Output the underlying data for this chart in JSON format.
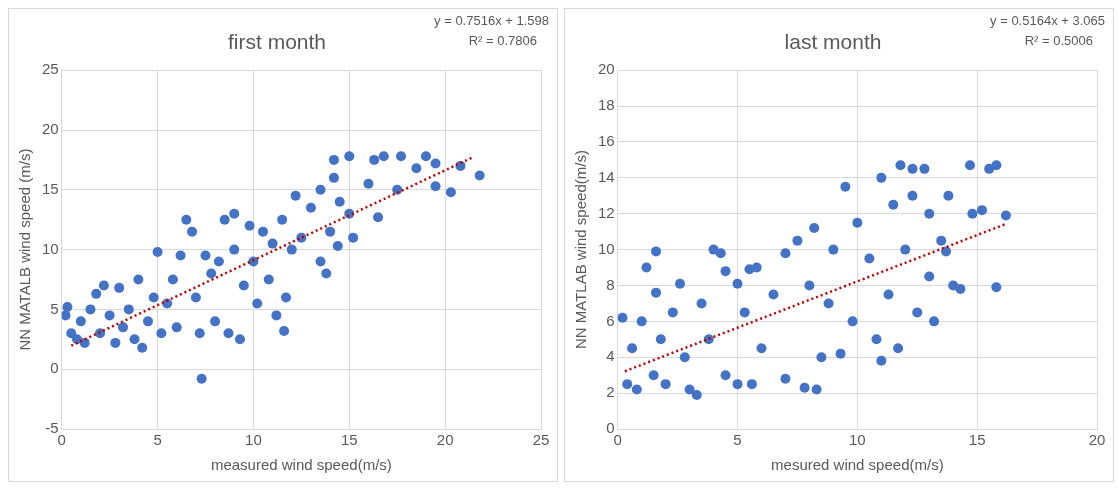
{
  "chart_data": [
    {
      "type": "scatter",
      "title": "first month",
      "xlabel": "measured wind speed(m/s)",
      "ylabel": "NN MATALB wind speed (m/s)",
      "xlim": [
        0,
        25
      ],
      "xticks": [
        0,
        5,
        10,
        15,
        20,
        25
      ],
      "ylim": [
        -5,
        25
      ],
      "yticks": [
        -5,
        0,
        5,
        10,
        15,
        20,
        25
      ],
      "grid": true,
      "marker": "circle",
      "annotations": [
        "y = 0.7516x + 1.598",
        "R² = 0.7806"
      ],
      "series": [
        {
          "color": "#4472c4",
          "x": [
            0.2,
            0.3,
            0.5,
            0.8,
            1,
            1.2,
            1.5,
            1.8,
            2,
            2.2,
            2.5,
            2.8,
            3,
            3.2,
            3.5,
            3.8,
            4,
            4.2,
            4.5,
            4.8,
            5,
            5.2,
            5.5,
            5.8,
            6,
            6.2,
            6.5,
            6.8,
            7,
            7.2,
            7.3,
            7.5,
            7.8,
            8,
            8.2,
            8.5,
            8.7,
            9,
            9,
            9.3,
            9.5,
            9.8,
            10,
            10.2,
            10.5,
            10.8,
            11,
            11.2,
            11.5,
            11.6,
            11.7,
            12,
            12.2,
            12.5,
            13,
            13.5,
            13.5,
            13.8,
            14,
            14.2,
            14.5,
            14.4,
            14.2,
            15,
            15,
            15.2,
            16,
            16.3,
            16.5,
            16.8,
            17.5,
            17.7,
            18.5,
            19,
            19.5,
            19.5,
            20.3,
            20.8,
            21.8
          ],
          "values": [
            4.5,
            5.2,
            3,
            2.5,
            4,
            2.2,
            5,
            6.3,
            3,
            7,
            4.5,
            2.2,
            6.8,
            3.5,
            5,
            2.5,
            7.5,
            1.8,
            4,
            6,
            9.8,
            3,
            5.5,
            7.5,
            3.5,
            9.5,
            12.5,
            11.5,
            6,
            3,
            -0.8,
            9.5,
            8,
            4,
            9,
            12.5,
            3,
            10,
            13,
            2.5,
            7,
            12,
            9,
            5.5,
            11.5,
            7.5,
            10.5,
            4.5,
            12.5,
            3.2,
            6,
            10,
            14.5,
            11,
            13.5,
            9,
            15,
            8,
            11.5,
            16,
            14,
            10.3,
            17.5,
            17.8,
            13,
            11,
            15.5,
            17.5,
            12.7,
            17.8,
            15,
            17.8,
            16.8,
            17.8,
            17.2,
            15.3,
            14.8,
            17,
            16.2
          ]
        },
        {
          "type": "line",
          "color": "#c00000",
          "line_style": "dotted",
          "marker": "none",
          "x": [
            0.5,
            21.5
          ],
          "values": [
            1.97,
            17.76
          ]
        }
      ]
    },
    {
      "type": "scatter",
      "title": "last month",
      "xlabel": "mesured wind speed(m/s)",
      "ylabel": "NN MATLAB wind speed(m/s)",
      "xlim": [
        0,
        20
      ],
      "xticks": [
        0,
        5,
        10,
        15,
        20
      ],
      "ylim": [
        0,
        20
      ],
      "yticks": [
        0,
        2,
        4,
        6,
        8,
        10,
        12,
        14,
        16,
        18,
        20
      ],
      "grid": true,
      "marker": "circle",
      "annotations": [
        "y = 0.5164x + 3.065",
        "R² = 0.5006"
      ],
      "series": [
        {
          "color": "#4472c4",
          "x": [
            0.2,
            0.4,
            0.6,
            0.8,
            1,
            1.2,
            1.5,
            1.6,
            1.6,
            1.8,
            2,
            2.3,
            2.6,
            2.8,
            3,
            3.3,
            3.5,
            3.8,
            4,
            4.3,
            4.5,
            4.5,
            5,
            5,
            5.3,
            5.5,
            5.6,
            5.8,
            6,
            6.5,
            7,
            7,
            7.5,
            7.8,
            8,
            8.3,
            8.2,
            8.5,
            8.8,
            9,
            9.3,
            9.5,
            9.8,
            10,
            10.5,
            10.8,
            11,
            11,
            11.3,
            11.5,
            11.7,
            11.8,
            12,
            12.3,
            12.3,
            12.5,
            12.8,
            13,
            13,
            13.2,
            13.5,
            13.7,
            13.8,
            14,
            14.3,
            14.7,
            14.8,
            15.2,
            15.5,
            15.8,
            15.8,
            16.2
          ],
          "values": [
            6.2,
            2.5,
            4.5,
            2.2,
            6,
            9,
            3,
            9.9,
            7.6,
            5,
            2.5,
            6.5,
            8.1,
            4,
            2.2,
            1.9,
            7,
            5,
            10,
            9.8,
            3,
            8.8,
            2.5,
            8.1,
            6.5,
            8.9,
            2.5,
            9,
            4.5,
            7.5,
            2.8,
            9.8,
            10.5,
            2.3,
            8,
            2.2,
            11.2,
            4,
            7,
            10,
            4.2,
            13.5,
            6,
            11.5,
            9.5,
            5,
            3.8,
            14,
            7.5,
            12.5,
            4.5,
            14.7,
            10,
            14.5,
            13,
            6.5,
            14.5,
            8.5,
            12,
            6,
            10.5,
            9.9,
            13,
            8,
            7.8,
            14.7,
            12,
            12.2,
            14.5,
            7.9,
            14.7,
            11.9
          ]
        },
        {
          "type": "line",
          "color": "#c00000",
          "line_style": "dotted",
          "marker": "none",
          "x": [
            0.3,
            16.2
          ],
          "values": [
            3.22,
            11.43
          ]
        }
      ]
    }
  ]
}
